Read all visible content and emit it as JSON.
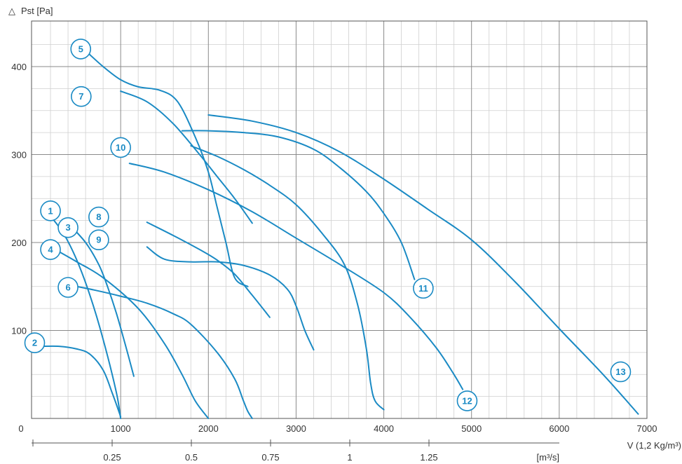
{
  "chart_data": {
    "type": "line",
    "ylabel": "Pst [Pa]",
    "ylabel_symbol": "△",
    "xlabel": "V (1,2 Kg/m³)",
    "secondary_xlabel": "[m³/s]",
    "xlim": [
      0,
      7000
    ],
    "ylim": [
      0,
      450
    ],
    "x_ticks": [
      0,
      1000,
      2000,
      3000,
      4000,
      5000,
      6000,
      7000
    ],
    "x_tick_labels": [
      "0",
      "1000",
      "2000",
      "3000",
      "4000",
      "5000",
      "6000",
      "7000"
    ],
    "y_ticks": [
      100,
      200,
      300,
      400
    ],
    "y_tick_labels": [
      "100",
      "200",
      "300",
      "400"
    ],
    "secondary_x_ticks": [
      0,
      0.25,
      0.5,
      0.75,
      1,
      1.25
    ],
    "secondary_x_tick_labels": [
      "",
      "0.25",
      "0.5",
      "0.75",
      "1",
      "1.25"
    ],
    "grid": true,
    "line_color": "#1a8ac4",
    "series": [
      {
        "name": "1",
        "x": [
          200,
          350,
          500,
          650,
          800,
          950,
          1000
        ],
        "y": [
          230,
          210,
          180,
          140,
          90,
          30,
          0
        ],
        "label_at": [
          200,
          236
        ]
      },
      {
        "name": "2",
        "x": [
          100,
          300,
          500,
          650,
          800,
          900,
          1000
        ],
        "y": [
          82,
          82,
          79,
          73,
          55,
          30,
          2
        ],
        "label_at": [
          20,
          86
        ]
      },
      {
        "name": "3",
        "x": [
          400,
          600,
          750,
          850,
          950,
          1050,
          1150
        ],
        "y": [
          222,
          200,
          175,
          150,
          120,
          85,
          48
        ],
        "label_at": [
          400,
          217
        ]
      },
      {
        "name": "4",
        "x": [
          200,
          500,
          800,
          1200,
          1500,
          1700,
          1850,
          2000
        ],
        "y": [
          195,
          178,
          160,
          125,
          85,
          50,
          20,
          0
        ],
        "label_at": [
          200,
          192
        ]
      },
      {
        "name": "5",
        "x": [
          600,
          800,
          1000,
          1200,
          1450,
          1650,
          1850,
          2000,
          2100,
          2200,
          2300,
          2450
        ],
        "y": [
          418,
          400,
          385,
          377,
          373,
          360,
          320,
          280,
          240,
          200,
          160,
          150
        ],
        "label_at": [
          545,
          420
        ]
      },
      {
        "name": "6",
        "x": [
          400,
          700,
          1000,
          1300,
          1600,
          1800,
          2100,
          2300,
          2400,
          2450,
          2500
        ],
        "y": [
          152,
          146,
          139,
          131,
          119,
          107,
          75,
          45,
          20,
          8,
          0
        ],
        "label_at": [
          400,
          149
        ]
      },
      {
        "name": "7",
        "x": [
          1000,
          1300,
          1600,
          1900,
          2100,
          2300,
          2500
        ],
        "y": [
          372,
          360,
          335,
          300,
          275,
          250,
          222
        ],
        "label_at": [
          550,
          366
        ]
      },
      {
        "name": "8",
        "x": [
          1300,
          1600,
          1900,
          2100,
          2300,
          2500,
          2700
        ],
        "y": [
          223,
          208,
          192,
          180,
          164,
          140,
          115
        ],
        "label_at": [
          750,
          229
        ]
      },
      {
        "name": "9",
        "x": [
          1300,
          1500,
          1800,
          2100,
          2400,
          2700,
          2900,
          3000,
          3100,
          3200
        ],
        "y": [
          195,
          181,
          178,
          178,
          174,
          163,
          147,
          128,
          100,
          78
        ],
        "label_at": [
          750,
          203
        ]
      },
      {
        "name": "10",
        "x": [
          1800,
          2100,
          2400,
          2700,
          3000,
          3300,
          3550,
          3700,
          3800,
          3850,
          3900,
          4000
        ],
        "y": [
          310,
          298,
          283,
          265,
          243,
          210,
          175,
          130,
          80,
          40,
          20,
          10
        ],
        "label_at": [
          1000,
          308
        ]
      },
      {
        "name": "11",
        "x": [
          1700,
          2000,
          2400,
          2800,
          3200,
          3500,
          3800,
          4000,
          4200,
          4350
        ],
        "y": [
          327,
          327,
          325,
          320,
          306,
          285,
          258,
          233,
          200,
          158
        ],
        "label_at": [
          4450,
          148
        ]
      },
      {
        "name": "12",
        "x": [
          1100,
          1500,
          2000,
          2500,
          3000,
          3500,
          4000,
          4300,
          4600,
          4800,
          4900
        ],
        "y": [
          290,
          280,
          260,
          235,
          205,
          175,
          143,
          115,
          80,
          50,
          33
        ],
        "label_at": [
          4950,
          20
        ]
      },
      {
        "name": "13",
        "x": [
          2000,
          2500,
          3000,
          3500,
          4000,
          4500,
          5000,
          5500,
          6000,
          6500,
          6900
        ],
        "y": [
          345,
          338,
          325,
          303,
          272,
          238,
          203,
          155,
          102,
          50,
          5
        ],
        "label_at": [
          6700,
          53
        ]
      }
    ]
  }
}
